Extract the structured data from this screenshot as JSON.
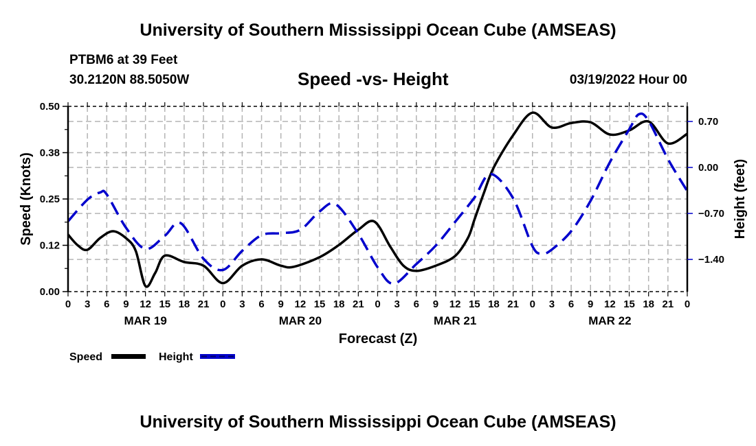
{
  "header": {
    "title_top": "University of Southern Mississippi Ocean Cube (AMSEAS)",
    "station": "PTBM6 at 39 Feet",
    "coords": "30.2120N  88.5050W",
    "plot_title": "Speed -vs- Height",
    "datetime": "03/19/2022 Hour 00"
  },
  "footer": {
    "title_bottom": "University of Southern Mississippi Ocean Cube (AMSEAS)"
  },
  "chart_data": {
    "type": "line",
    "title": "Speed -vs- Height",
    "xlabel": "Forecast (Z)",
    "ylabel": "Speed (Knots)",
    "y2label": "Height (feet)",
    "grid": true,
    "legend_position": "bottom-left",
    "x_unit": "forecast hour",
    "xlim": [
      0,
      96
    ],
    "ylim": [
      0.0,
      0.5
    ],
    "y2lim": [
      -1.89,
      0.93
    ],
    "x_tick_step_hours": 3,
    "x_tick_labels": [
      "0",
      "3",
      "6",
      "9",
      "12",
      "15",
      "18",
      "21",
      "0",
      "3",
      "6",
      "9",
      "12",
      "15",
      "18",
      "21",
      "0",
      "3",
      "6",
      "9",
      "12",
      "15",
      "18",
      "21",
      "0",
      "3",
      "6",
      "9",
      "12",
      "15",
      "18",
      "21",
      "0"
    ],
    "day_labels": [
      {
        "label": "MAR 19",
        "center_hour": 12
      },
      {
        "label": "MAR 20",
        "center_hour": 36
      },
      {
        "label": "MAR 21",
        "center_hour": 60
      },
      {
        "label": "MAR 22",
        "center_hour": 84
      }
    ],
    "y_ticks": [
      {
        "value": 0.0,
        "label": "0.00"
      },
      {
        "value": 0.125,
        "label": "0.12"
      },
      {
        "value": 0.25,
        "label": "0.25"
      },
      {
        "value": 0.375,
        "label": "0.38"
      },
      {
        "value": 0.5,
        "label": "0.50"
      }
    ],
    "y2_ticks": [
      {
        "value": 0.7,
        "label": "0.70"
      },
      {
        "value": 0.0,
        "label": "0.00"
      },
      {
        "value": -0.7,
        "label": "−0.70"
      },
      {
        "value": -1.4,
        "label": "−1.40"
      }
    ],
    "series": [
      {
        "name": "Speed",
        "axis": "left",
        "color": "#000000",
        "style": "solid",
        "x": [
          0,
          1.5,
          3,
          5,
          7,
          9,
          10.5,
          12,
          13.5,
          15,
          18,
          21,
          24,
          27,
          30,
          33,
          35,
          39,
          42,
          45,
          47.5,
          50,
          52,
          54,
          57,
          60,
          62,
          63,
          64.5,
          66,
          69,
          72,
          75,
          78,
          81,
          84,
          87,
          90,
          93,
          96
        ],
        "values": [
          0.154,
          0.125,
          0.113,
          0.145,
          0.163,
          0.144,
          0.11,
          0.015,
          0.05,
          0.097,
          0.08,
          0.07,
          0.023,
          0.07,
          0.087,
          0.07,
          0.067,
          0.093,
          0.126,
          0.167,
          0.189,
          0.12,
          0.07,
          0.056,
          0.07,
          0.096,
          0.145,
          0.194,
          0.268,
          0.335,
          0.422,
          0.483,
          0.443,
          0.455,
          0.457,
          0.424,
          0.435,
          0.459,
          0.4,
          0.426
        ]
      },
      {
        "name": "Height",
        "axis": "right",
        "color": "#0000cc",
        "style": "dashed",
        "x": [
          0,
          3,
          5,
          6,
          9,
          12,
          15,
          17.5,
          21,
          24,
          27,
          30,
          33,
          36,
          39,
          41.5,
          45,
          48,
          50.5,
          54,
          57,
          60,
          63,
          65.5,
          69,
          72,
          73.5,
          75,
          78,
          81,
          84,
          87,
          88.5,
          90,
          93,
          96
        ],
        "values": [
          -0.82,
          -0.49,
          -0.38,
          -0.41,
          -0.92,
          -1.24,
          -1.04,
          -0.85,
          -1.39,
          -1.56,
          -1.27,
          -1.03,
          -1.0,
          -0.95,
          -0.67,
          -0.56,
          -1.01,
          -1.52,
          -1.77,
          -1.47,
          -1.19,
          -0.83,
          -0.46,
          -0.1,
          -0.47,
          -1.2,
          -1.31,
          -1.25,
          -0.97,
          -0.51,
          0.08,
          0.58,
          0.81,
          0.71,
          0.13,
          -0.36
        ]
      }
    ]
  }
}
